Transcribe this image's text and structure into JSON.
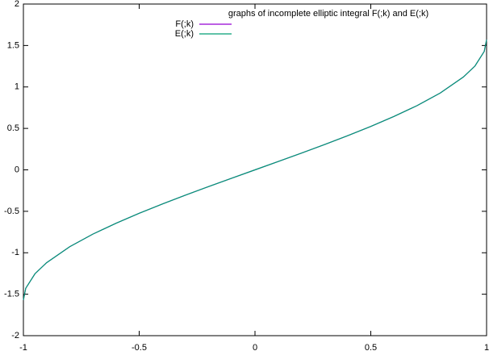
{
  "chart_data": {
    "type": "line",
    "title": "graphs of incomplete elliptic integral F(;k) and E(;k)",
    "x": [
      -1,
      -0.99,
      -0.95,
      -0.9,
      -0.8,
      -0.7,
      -0.6,
      -0.5,
      -0.4,
      -0.3,
      -0.2,
      -0.1,
      0,
      0.1,
      0.2,
      0.3,
      0.4,
      0.5,
      0.6,
      0.7,
      0.8,
      0.9,
      0.95,
      0.99,
      1
    ],
    "series": [
      {
        "name": "F(;k)",
        "color": "#9400d3",
        "values": [
          -1.571,
          -1.429,
          -1.253,
          -1.12,
          -0.927,
          -0.775,
          -0.644,
          -0.524,
          -0.412,
          -0.305,
          -0.201,
          -0.1,
          0,
          0.1,
          0.201,
          0.305,
          0.412,
          0.524,
          0.644,
          0.775,
          0.927,
          1.12,
          1.253,
          1.429,
          1.571
        ]
      },
      {
        "name": "E(;k)",
        "color": "#009e73",
        "values": [
          -1.571,
          -1.429,
          -1.253,
          -1.12,
          -0.927,
          -0.775,
          -0.644,
          -0.524,
          -0.412,
          -0.305,
          -0.201,
          -0.1,
          0,
          0.1,
          0.201,
          0.305,
          0.412,
          0.524,
          0.644,
          0.775,
          0.927,
          1.12,
          1.253,
          1.429,
          1.571
        ]
      }
    ],
    "xlim": [
      -1,
      1
    ],
    "xticks": [
      -1,
      -0.5,
      0,
      0.5,
      1
    ],
    "ylim": [
      -2,
      2
    ],
    "yticks": [
      -2,
      -1.5,
      -1,
      -0.5,
      0,
      0.5,
      1,
      1.5,
      2
    ],
    "grid": false,
    "legend_position": "top"
  }
}
